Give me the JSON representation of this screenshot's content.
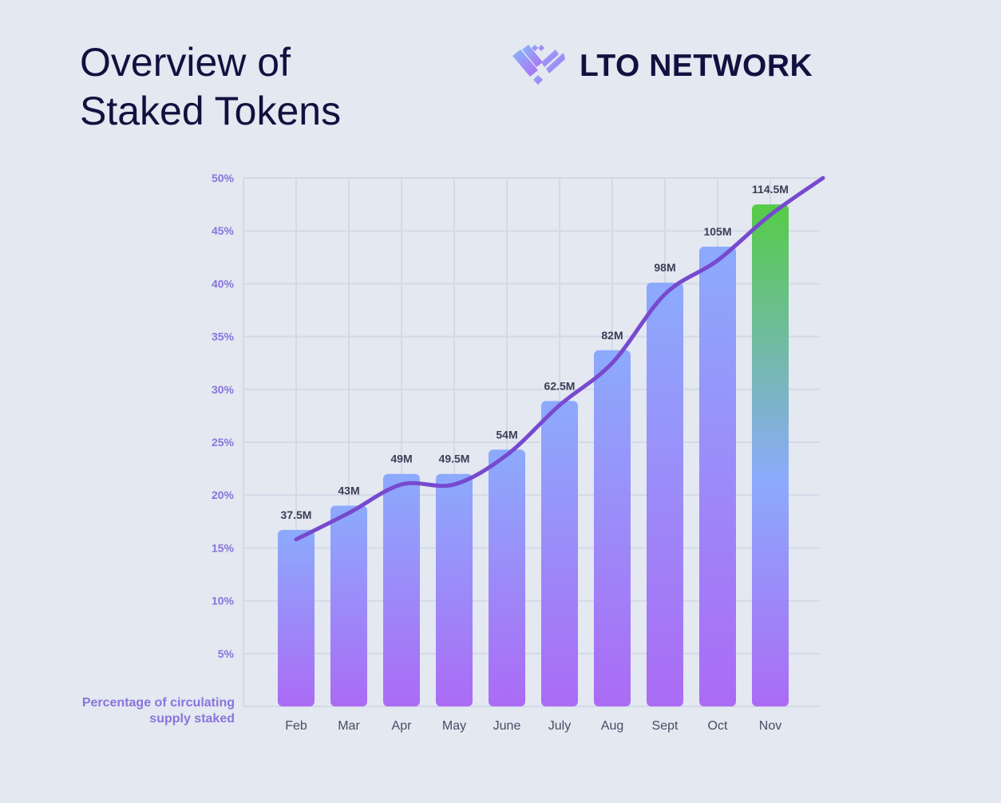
{
  "header": {
    "title_line1": "Overview of",
    "title_line2": "Staked Tokens"
  },
  "brand": {
    "name": "LTO NETWORK",
    "icon": "lto-logo-icon"
  },
  "colors": {
    "background": "#e3e8f1",
    "title": "#13103f",
    "axis_label": "#8a74db",
    "bar_top": "#8caafc",
    "bar_bottom": "#ab6bf5",
    "bar_highlight_top": "#55cc47",
    "line": "#7749cf",
    "grid": "#d3d9e7"
  },
  "chart_data": {
    "type": "bar",
    "ylabel": "Percentage of circulating supply staked",
    "ylim": [
      0,
      50
    ],
    "yticks": [
      5,
      10,
      15,
      20,
      25,
      30,
      35,
      40,
      45,
      50
    ],
    "ytick_labels": [
      "5%",
      "10%",
      "15%",
      "20%",
      "25%",
      "30%",
      "35%",
      "40%",
      "45%",
      "50%"
    ],
    "categories": [
      "Feb",
      "Mar",
      "Apr",
      "May",
      "June",
      "July",
      "Aug",
      "Sept",
      "Oct",
      "Nov"
    ],
    "values": [
      16.7,
      19.0,
      22.0,
      22.0,
      24.3,
      28.9,
      33.7,
      40.1,
      43.5,
      47.5
    ],
    "data_labels": [
      "37.5M",
      "43M",
      "49M",
      "49.5M",
      "54M",
      "62.5M",
      "82M",
      "98M",
      "105M",
      "114.5M"
    ],
    "highlight_index": 9,
    "trend_line": [
      15.8,
      18.3,
      21.0,
      21.0,
      23.8,
      28.5,
      32.5,
      39.0,
      42.2,
      46.5,
      50.0
    ],
    "grid": true,
    "legend": "none"
  }
}
